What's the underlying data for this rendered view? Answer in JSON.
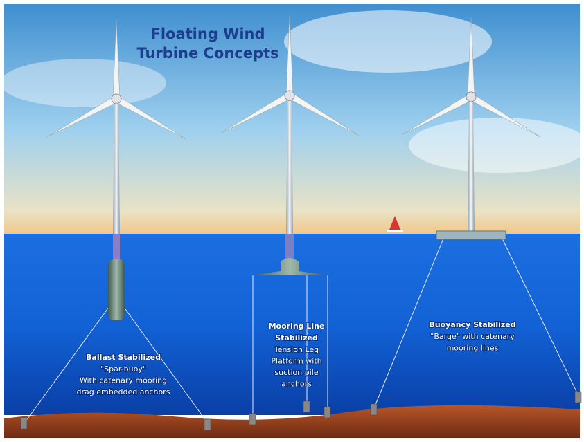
{
  "title": {
    "lines": [
      "Floating Wind",
      "Turbine Concepts"
    ]
  },
  "concepts": [
    {
      "heading": [
        "Ballast Stabilized"
      ],
      "description": [
        "\"Spar-buoy\"",
        "With catenary mooring",
        "drag embedded anchors"
      ]
    },
    {
      "heading": [
        "Mooring Line",
        "Stabilized"
      ],
      "description": [
        "Tension Leg",
        "Platform with",
        "suction pile",
        "anchors"
      ]
    },
    {
      "heading": [
        "Buoyancy Stabilized"
      ],
      "description": [
        "\"Barge\" with catenary",
        "mooring lines"
      ]
    }
  ]
}
